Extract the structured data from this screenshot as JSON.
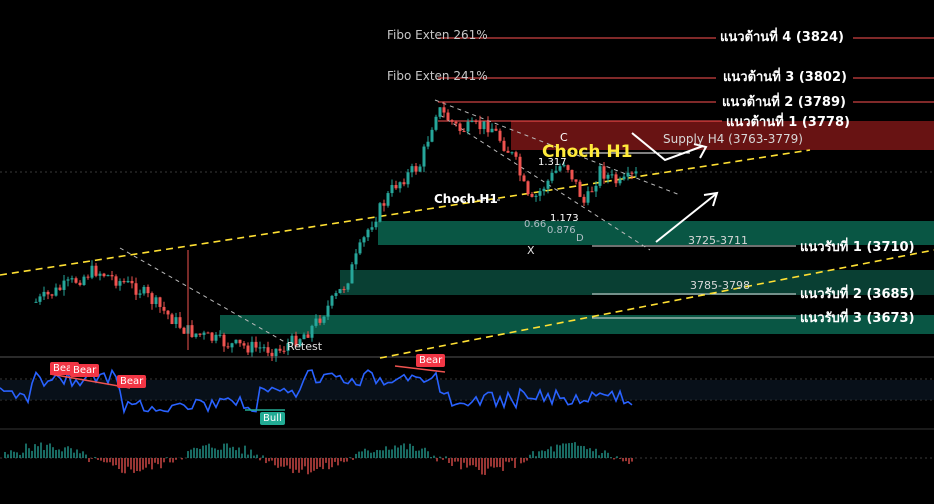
{
  "levels": {
    "r4": "แนวต้านที่ 4 (3824)",
    "r3": "แนวต้านที่ 3 (3802)",
    "r2": "แนวต้านที่ 2 (3789)",
    "r1": "แนวต้านที่ 1 (3778)",
    "s1": "แนวรับที่ 1 (3710)",
    "s2": "แนวรับที่ 2 (3685)",
    "s3": "แนวรับที่ 3 (3673)"
  },
  "fibo": {
    "f261": "Fibo Exten 261%",
    "f241": "Fibo Exten 241%"
  },
  "zones": {
    "supply": "Supply H4  (3763-3779)",
    "z1": "3725-3711",
    "z2": "3785-3798"
  },
  "annotations": {
    "choch_big": "Choch H1",
    "choch_small": "Choch H1",
    "retest": "Retest",
    "c": "C",
    "d": "D",
    "x": "X",
    "r1317": "1.317",
    "r1173": "1.173",
    "r0664": "0.66",
    "r0876": "0.876"
  },
  "badges": [
    "Bear",
    "Bear",
    "Bear",
    "Bear",
    "Bull"
  ],
  "colors": {
    "bull": "#26a69a",
    "bear": "#ef5350",
    "resistance": "#ff5252",
    "rsi": "#2962ff",
    "choch": "#ffeb3b"
  },
  "chart_data": {
    "type": "candlestick",
    "resistance_levels": [
      3824,
      3802,
      3789,
      3778
    ],
    "support_levels": [
      3710,
      3685,
      3673
    ],
    "supply_zone": [
      3763,
      3779
    ]
  }
}
